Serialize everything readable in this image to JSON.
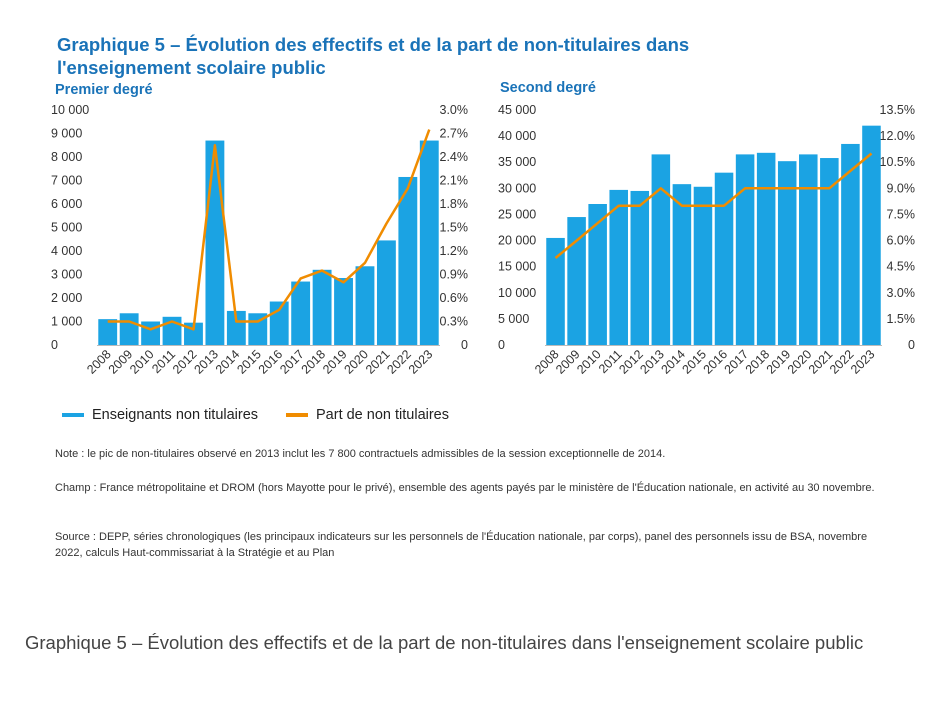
{
  "title": "Graphique 5 – Évolution des effectifs et de la part de non-titulaires dans l'enseignement scolaire public",
  "legend": {
    "bar_label": "Enseignants non titulaires",
    "line_label": "Part de non titulaires",
    "bar_color": "#1ba3e3",
    "line_color": "#f08c00"
  },
  "chart_data": [
    {
      "type": "bar",
      "subtitle": "Premier degré",
      "categories": [
        "2008",
        "2009",
        "2010",
        "2011",
        "2012",
        "2013",
        "2014",
        "2015",
        "2016",
        "2017",
        "2018",
        "2019",
        "2020",
        "2021",
        "2022",
        "2023"
      ],
      "series": [
        {
          "name": "Enseignants non titulaires",
          "kind": "bar",
          "axis": "left",
          "values": [
            1100,
            1350,
            1000,
            1200,
            950,
            8700,
            1450,
            1350,
            1850,
            2700,
            3200,
            2850,
            3350,
            4450,
            7150,
            8700
          ]
        },
        {
          "name": "Part de non titulaires",
          "kind": "line",
          "axis": "right",
          "values": [
            0.3,
            0.3,
            0.2,
            0.3,
            0.2,
            2.55,
            0.3,
            0.3,
            0.45,
            0.85,
            0.95,
            0.8,
            1.05,
            1.55,
            2.0,
            2.75
          ]
        }
      ],
      "y_left": {
        "min": 0,
        "max": 10000,
        "ticks": [
          "0",
          "1 000",
          "2 000",
          "3 000",
          "4 000",
          "5 000",
          "6 000",
          "7 000",
          "8 000",
          "9 000",
          "10 000"
        ]
      },
      "y_right": {
        "min": 0,
        "max": 3.0,
        "ticks": [
          "0",
          "0.3%",
          "0.6%",
          "0.9%",
          "1.2%",
          "1.5%",
          "1.8%",
          "2.1%",
          "2.4%",
          "2.7%",
          "3.0%"
        ]
      },
      "grid": false
    },
    {
      "type": "bar",
      "subtitle": "Second degré",
      "categories": [
        "2008",
        "2009",
        "2010",
        "2011",
        "2012",
        "2013",
        "2014",
        "2015",
        "2016",
        "2017",
        "2018",
        "2019",
        "2020",
        "2021",
        "2022",
        "2023"
      ],
      "series": [
        {
          "name": "Enseignants non titulaires",
          "kind": "bar",
          "axis": "left",
          "values": [
            20500,
            24500,
            27000,
            29700,
            29500,
            36500,
            30800,
            30300,
            33000,
            36500,
            36800,
            35200,
            36500,
            35800,
            38500,
            42000
          ]
        },
        {
          "name": "Part de non titulaires",
          "kind": "line",
          "axis": "right",
          "values": [
            5.0,
            6.0,
            7.0,
            8.0,
            8.0,
            9.0,
            8.0,
            8.0,
            8.0,
            9.0,
            9.0,
            9.0,
            9.0,
            9.0,
            10.0,
            11.0
          ]
        }
      ],
      "y_left": {
        "min": 0,
        "max": 45000,
        "ticks": [
          "0",
          "5 000",
          "10 000",
          "15 000",
          "20 000",
          "25 000",
          "30 000",
          "35 000",
          "40 000",
          "45 000"
        ]
      },
      "y_right": {
        "min": 0,
        "max": 13.5,
        "ticks": [
          "0",
          "1.5%",
          "3.0%",
          "4.5%",
          "6.0%",
          "7.5%",
          "9.0%",
          "10.5%",
          "12.0%",
          "13.5%"
        ]
      },
      "grid": false
    }
  ],
  "notes": {
    "note": "Note : le pic de non-titulaires observé en 2013 inclut les 7 800 contractuels admissibles de la session exceptionnelle de 2014.",
    "champ": "Champ : France métropolitaine et DROM (hors Mayotte pour le privé), ensemble des agents payés par le ministère de l'Éducation nationale, en activité au 30 novembre.",
    "source": "Source : DEPP, séries chronologiques (les principaux indicateurs sur les personnels de l'Éducation nationale, par corps), panel des personnels issu de BSA, novembre 2022, calculs Haut-commissariat à la Stratégie et au Plan"
  },
  "caption": "Graphique 5 – Évolution des effectifs et de la part de non-titulaires dans l'enseignement scolaire public"
}
